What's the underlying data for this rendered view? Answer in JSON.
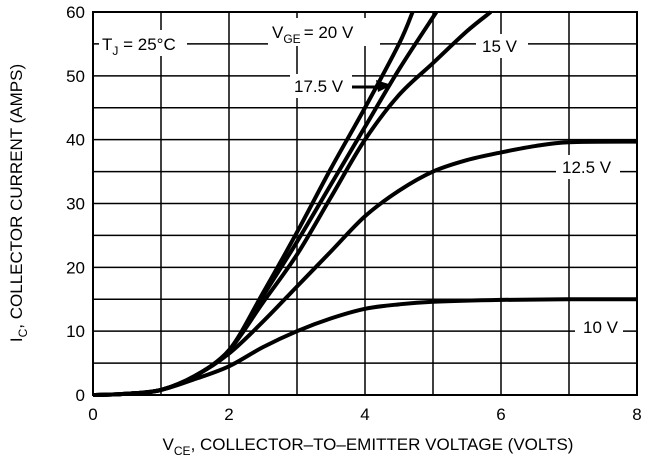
{
  "chart_data": {
    "type": "line",
    "xlabel": {
      "main": "V",
      "sub": "CE",
      "rest": ", COLLECTOR–TO–EMITTER VOLTAGE (VOLTS)"
    },
    "ylabel": {
      "main": "I",
      "sub": "C",
      "rest": ", COLLECTOR CURRENT (AMPS)"
    },
    "annotations": {
      "tj": {
        "main": "T",
        "sub": "J",
        "rest": " = 25°C"
      },
      "vge": {
        "main": "V",
        "sub": "GE"
      }
    },
    "xlim": [
      0,
      8
    ],
    "ylim": [
      0,
      60
    ],
    "xticks": [
      0,
      2,
      4,
      6,
      8
    ],
    "yticks": [
      0,
      10,
      20,
      30,
      40,
      50,
      60
    ],
    "xminorticks": [
      1,
      3,
      5,
      7
    ],
    "yminorticks": [
      5,
      15,
      25,
      35,
      45,
      55
    ],
    "grid": true,
    "series": [
      {
        "name": "10 V",
        "color": "#000000",
        "x": [
          0,
          0.5,
          1,
          1.5,
          2,
          2.5,
          3,
          3.5,
          4,
          4.5,
          5,
          6,
          7,
          8
        ],
        "values": [
          0,
          0.2,
          0.8,
          2.5,
          4.5,
          7.5,
          10,
          12,
          13.5,
          14.2,
          14.6,
          14.9,
          15,
          15
        ]
      },
      {
        "name": "12.5 V",
        "color": "#000000",
        "x": [
          0,
          0.5,
          1,
          1.5,
          2,
          2.5,
          3,
          3.5,
          4,
          4.5,
          5,
          5.5,
          6,
          6.5,
          7,
          8
        ],
        "values": [
          0,
          0.2,
          0.8,
          3,
          6.5,
          11.5,
          17,
          22.5,
          28,
          32,
          35,
          36.8,
          38,
          39,
          39.6,
          39.7
        ]
      },
      {
        "name": "15 V",
        "color": "#000000",
        "x": [
          0,
          0.5,
          1,
          1.5,
          2,
          2.5,
          3,
          3.5,
          4,
          4.5,
          5,
          5.5,
          5.85
        ],
        "values": [
          0,
          0.2,
          0.8,
          3,
          7,
          14.5,
          22,
          31,
          40,
          47,
          52,
          57,
          60
        ]
      },
      {
        "name": "17.5 V",
        "color": "#000000",
        "x": [
          0,
          0.5,
          1,
          1.5,
          2,
          2.5,
          3,
          3.5,
          4,
          4.5,
          5.05
        ],
        "values": [
          0,
          0.2,
          0.8,
          3,
          7,
          15.5,
          24,
          33,
          42,
          51,
          60
        ]
      },
      {
        "name": "= 20 V",
        "color": "#000000",
        "x": [
          0,
          0.5,
          1,
          1.5,
          2,
          2.5,
          3,
          3.5,
          4,
          4.5,
          4.7
        ],
        "values": [
          0,
          0.2,
          0.8,
          3,
          7,
          16,
          25.5,
          35.5,
          45,
          55,
          60
        ]
      }
    ]
  }
}
